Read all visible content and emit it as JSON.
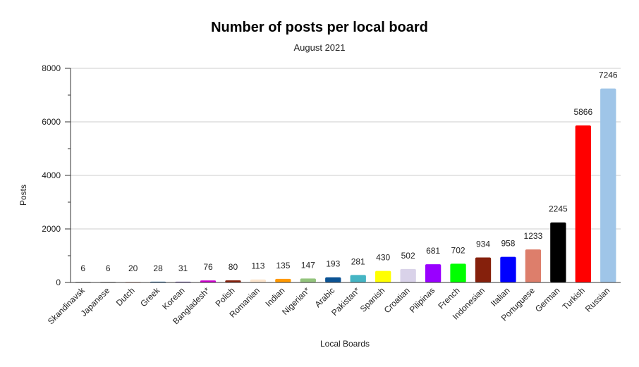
{
  "chart_data": {
    "type": "bar",
    "title": "Number of posts per local board",
    "subtitle": "August 2021",
    "xlabel": "Local Boards",
    "ylabel": "Posts",
    "ylim": [
      0,
      8000
    ],
    "yticks": [
      "0",
      "2000",
      "4000",
      "6000",
      "8000"
    ],
    "grid": true,
    "legend": "none",
    "categories": [
      "Skandinavsk",
      "Japanese",
      "Dutch",
      "Greek",
      "Korean",
      "Bangladesh*",
      "Polish",
      "Romanian",
      "Indian",
      "Nigerian*",
      "Arabic",
      "Pakistan*",
      "Spanish",
      "Croatian",
      "Pilipinas",
      "French",
      "Indonesian",
      "Italian",
      "Portuguese",
      "German",
      "Turkish",
      "Russian"
    ],
    "values": [
      6,
      6,
      20,
      28,
      31,
      76,
      80,
      113,
      135,
      147,
      193,
      281,
      430,
      502,
      681,
      702,
      934,
      958,
      1233,
      2245,
      5866,
      7246
    ],
    "colors": [
      "#999999",
      "#999999",
      "#e6b8af",
      "#0b5394",
      "#674ea7",
      "#cc00cc",
      "#85200c",
      "#fce5cd",
      "#ff9900",
      "#93c47d",
      "#0b5394",
      "#45b5c4",
      "#ffff00",
      "#d9d2e9",
      "#9900ff",
      "#00ff00",
      "#85200c",
      "#0000ff",
      "#dd7e6b",
      "#000000",
      "#ff0000",
      "#9fc5e8"
    ]
  }
}
